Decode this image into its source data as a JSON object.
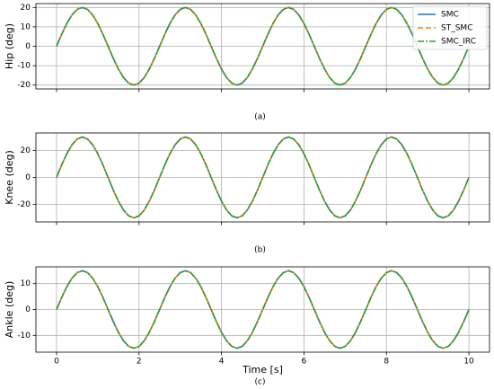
{
  "chart_data": [
    {
      "type": "line",
      "ylabel": "Hip (deg)",
      "caption": "(a)",
      "grid": true,
      "legend": "upper right",
      "x": [
        0,
        0.125,
        0.25,
        0.375,
        0.5,
        0.625,
        0.75,
        0.875,
        1,
        1.125,
        1.25,
        1.375,
        1.5,
        1.625,
        1.75,
        1.875,
        2,
        2.125,
        2.25,
        2.375,
        2.5,
        2.625,
        2.75,
        2.875,
        3,
        3.125,
        3.25,
        3.375,
        3.5,
        3.625,
        3.75,
        3.875,
        4,
        4.125,
        4.25,
        4.375,
        4.5,
        4.625,
        4.75,
        4.875,
        5,
        5.125,
        5.25,
        5.375,
        5.5,
        5.625,
        5.75,
        5.875,
        6,
        6.125,
        6.25,
        6.375,
        6.5,
        6.625,
        6.75,
        6.875,
        7,
        7.125,
        7.25,
        7.375,
        7.5,
        7.625,
        7.75,
        7.875,
        8,
        8.125,
        8.25,
        8.375,
        8.5,
        8.625,
        8.75,
        8.875,
        9,
        9.125,
        9.25,
        9.375,
        9.5,
        9.625,
        9.75,
        9.875,
        10
      ],
      "xlim": [
        -0.5,
        10.5
      ],
      "xticks": [
        0,
        2,
        4,
        6,
        8,
        10
      ],
      "ylim": [
        -22,
        22
      ],
      "yticks": [
        -20,
        -10,
        0,
        10,
        20
      ],
      "series": [
        {
          "name": "SMC",
          "color": "#1f77b4",
          "linestyle": "solid",
          "values": [
            0,
            6.18,
            11.76,
            16.18,
            19.02,
            20,
            19.02,
            16.18,
            11.76,
            6.18,
            0,
            -6.18,
            -11.76,
            -16.18,
            -19.02,
            -20,
            -19.02,
            -16.18,
            -11.76,
            -6.18,
            0,
            6.18,
            11.76,
            16.18,
            19.02,
            20,
            19.02,
            16.18,
            11.76,
            6.18,
            0,
            -6.18,
            -11.76,
            -16.18,
            -19.02,
            -20,
            -19.02,
            -16.18,
            -11.76,
            -6.18,
            0,
            6.18,
            11.76,
            16.18,
            19.02,
            20,
            19.02,
            16.18,
            11.76,
            6.18,
            0,
            -6.18,
            -11.76,
            -16.18,
            -19.02,
            -20,
            -19.02,
            -16.18,
            -11.76,
            -6.18,
            0,
            6.18,
            11.76,
            16.18,
            19.02,
            20,
            19.02,
            16.18,
            11.76,
            6.18,
            0,
            -6.18,
            -11.76,
            -16.18,
            -19.02,
            -20,
            -19.02,
            -16.18,
            -11.76,
            -6.18,
            0
          ]
        },
        {
          "name": "ST_SMC",
          "color": "#ff7f0e",
          "linestyle": "dashed",
          "values": [
            0,
            6.18,
            11.76,
            16.18,
            19.02,
            20,
            19.02,
            16.18,
            11.76,
            6.18,
            0,
            -6.18,
            -11.76,
            -16.18,
            -19.02,
            -20,
            -19.02,
            -16.18,
            -11.76,
            -6.18,
            0,
            6.18,
            11.76,
            16.18,
            19.02,
            20,
            19.02,
            16.18,
            11.76,
            6.18,
            0,
            -6.18,
            -11.76,
            -16.18,
            -19.02,
            -20,
            -19.02,
            -16.18,
            -11.76,
            -6.18,
            0,
            6.18,
            11.76,
            16.18,
            19.02,
            20,
            19.02,
            16.18,
            11.76,
            6.18,
            0,
            -6.18,
            -11.76,
            -16.18,
            -19.02,
            -20,
            -19.02,
            -16.18,
            -11.76,
            -6.18,
            0,
            6.18,
            11.76,
            16.18,
            19.02,
            20,
            19.02,
            16.18,
            11.76,
            6.18,
            0,
            -6.18,
            -11.76,
            -16.18,
            -19.02,
            -20,
            -19.02,
            -16.18,
            -11.76,
            -6.18,
            0
          ]
        },
        {
          "name": "SMC_IRC",
          "color": "#2ca02c",
          "linestyle": "dashdot",
          "values": [
            0,
            6.18,
            11.76,
            16.18,
            19.02,
            20,
            19.02,
            16.18,
            11.76,
            6.18,
            0,
            -6.18,
            -11.76,
            -16.18,
            -19.02,
            -20,
            -19.02,
            -16.18,
            -11.76,
            -6.18,
            0,
            6.18,
            11.76,
            16.18,
            19.02,
            20,
            19.02,
            16.18,
            11.76,
            6.18,
            0,
            -6.18,
            -11.76,
            -16.18,
            -19.02,
            -20,
            -19.02,
            -16.18,
            -11.76,
            -6.18,
            0,
            6.18,
            11.76,
            16.18,
            19.02,
            20,
            19.02,
            16.18,
            11.76,
            6.18,
            0,
            -6.18,
            -11.76,
            -16.18,
            -19.02,
            -20,
            -19.02,
            -16.18,
            -11.76,
            -6.18,
            0,
            6.18,
            11.76,
            16.18,
            19.02,
            20,
            19.02,
            16.18,
            11.76,
            6.18,
            0,
            -6.18,
            -11.76,
            -16.18,
            -19.02,
            -20,
            -19.02,
            -16.18,
            -11.76,
            -6.18,
            0
          ]
        }
      ]
    },
    {
      "type": "line",
      "ylabel": "Knee (deg)",
      "caption": "(b)",
      "grid": true,
      "x": [
        0,
        0.125,
        0.25,
        0.375,
        0.5,
        0.625,
        0.75,
        0.875,
        1,
        1.125,
        1.25,
        1.375,
        1.5,
        1.625,
        1.75,
        1.875,
        2,
        2.125,
        2.25,
        2.375,
        2.5,
        2.625,
        2.75,
        2.875,
        3,
        3.125,
        3.25,
        3.375,
        3.5,
        3.625,
        3.75,
        3.875,
        4,
        4.125,
        4.25,
        4.375,
        4.5,
        4.625,
        4.75,
        4.875,
        5,
        5.125,
        5.25,
        5.375,
        5.5,
        5.625,
        5.75,
        5.875,
        6,
        6.125,
        6.25,
        6.375,
        6.5,
        6.625,
        6.75,
        6.875,
        7,
        7.125,
        7.25,
        7.375,
        7.5,
        7.625,
        7.75,
        7.875,
        8,
        8.125,
        8.25,
        8.375,
        8.5,
        8.625,
        8.75,
        8.875,
        9,
        9.125,
        9.25,
        9.375,
        9.5,
        9.625,
        9.75,
        9.875,
        10
      ],
      "xlim": [
        -0.5,
        10.5
      ],
      "xticks": [
        0,
        2,
        4,
        6,
        8,
        10
      ],
      "ylim": [
        -33,
        33
      ],
      "yticks": [
        -20,
        0,
        20
      ],
      "series": [
        {
          "color": "#1f77b4",
          "linestyle": "solid",
          "values": [
            0,
            9.27,
            17.63,
            24.27,
            28.53,
            30,
            28.53,
            24.27,
            17.63,
            9.27,
            0,
            -9.27,
            -17.63,
            -24.27,
            -28.53,
            -30,
            -28.53,
            -24.27,
            -17.63,
            -9.27,
            0,
            9.27,
            17.63,
            24.27,
            28.53,
            30,
            28.53,
            24.27,
            17.63,
            9.27,
            0,
            -9.27,
            -17.63,
            -24.27,
            -28.53,
            -30,
            -28.53,
            -24.27,
            -17.63,
            -9.27,
            0,
            9.27,
            17.63,
            24.27,
            28.53,
            30,
            28.53,
            24.27,
            17.63,
            9.27,
            0,
            -9.27,
            -17.63,
            -24.27,
            -28.53,
            -30,
            -28.53,
            -24.27,
            -17.63,
            -9.27,
            0,
            9.27,
            17.63,
            24.27,
            28.53,
            30,
            28.53,
            24.27,
            17.63,
            9.27,
            0,
            -9.27,
            -17.63,
            -24.27,
            -28.53,
            -30,
            -28.53,
            -24.27,
            -17.63,
            -9.27,
            0
          ]
        },
        {
          "color": "#ff7f0e",
          "linestyle": "dashed",
          "values": [
            0,
            9.27,
            17.63,
            24.27,
            28.53,
            30,
            28.53,
            24.27,
            17.63,
            9.27,
            0,
            -9.27,
            -17.63,
            -24.27,
            -28.53,
            -30,
            -28.53,
            -24.27,
            -17.63,
            -9.27,
            0,
            9.27,
            17.63,
            24.27,
            28.53,
            30,
            28.53,
            24.27,
            17.63,
            9.27,
            0,
            -9.27,
            -17.63,
            -24.27,
            -28.53,
            -30,
            -28.53,
            -24.27,
            -17.63,
            -9.27,
            0,
            9.27,
            17.63,
            24.27,
            28.53,
            30,
            28.53,
            24.27,
            17.63,
            9.27,
            0,
            -9.27,
            -17.63,
            -24.27,
            -28.53,
            -30,
            -28.53,
            -24.27,
            -17.63,
            -9.27,
            0,
            9.27,
            17.63,
            24.27,
            28.53,
            30,
            28.53,
            24.27,
            17.63,
            9.27,
            0,
            -9.27,
            -17.63,
            -24.27,
            -28.53,
            -30,
            -28.53,
            -24.27,
            -17.63,
            -9.27,
            0
          ]
        },
        {
          "color": "#2ca02c",
          "linestyle": "dashdot",
          "values": [
            0,
            9.27,
            17.63,
            24.27,
            28.53,
            30,
            28.53,
            24.27,
            17.63,
            9.27,
            0,
            -9.27,
            -17.63,
            -24.27,
            -28.53,
            -30,
            -28.53,
            -24.27,
            -17.63,
            -9.27,
            0,
            9.27,
            17.63,
            24.27,
            28.53,
            30,
            28.53,
            24.27,
            17.63,
            9.27,
            0,
            -9.27,
            -17.63,
            -24.27,
            -28.53,
            -30,
            -28.53,
            -24.27,
            -17.63,
            -9.27,
            0,
            9.27,
            17.63,
            24.27,
            28.53,
            30,
            28.53,
            24.27,
            17.63,
            9.27,
            0,
            -9.27,
            -17.63,
            -24.27,
            -28.53,
            -30,
            -28.53,
            -24.27,
            -17.63,
            -9.27,
            0,
            9.27,
            17.63,
            24.27,
            28.53,
            30,
            28.53,
            24.27,
            17.63,
            9.27,
            0,
            -9.27,
            -17.63,
            -24.27,
            -28.53,
            -30,
            -28.53,
            -24.27,
            -17.63,
            -9.27,
            0
          ]
        }
      ]
    },
    {
      "type": "line",
      "ylabel": "Ankle (deg)",
      "caption": "(c)",
      "xlabel": "Time [s]",
      "grid": true,
      "x": [
        0,
        0.125,
        0.25,
        0.375,
        0.5,
        0.625,
        0.75,
        0.875,
        1,
        1.125,
        1.25,
        1.375,
        1.5,
        1.625,
        1.75,
        1.875,
        2,
        2.125,
        2.25,
        2.375,
        2.5,
        2.625,
        2.75,
        2.875,
        3,
        3.125,
        3.25,
        3.375,
        3.5,
        3.625,
        3.75,
        3.875,
        4,
        4.125,
        4.25,
        4.375,
        4.5,
        4.625,
        4.75,
        4.875,
        5,
        5.125,
        5.25,
        5.375,
        5.5,
        5.625,
        5.75,
        5.875,
        6,
        6.125,
        6.25,
        6.375,
        6.5,
        6.625,
        6.75,
        6.875,
        7,
        7.125,
        7.25,
        7.375,
        7.5,
        7.625,
        7.75,
        7.875,
        8,
        8.125,
        8.25,
        8.375,
        8.5,
        8.625,
        8.75,
        8.875,
        9,
        9.125,
        9.25,
        9.375,
        9.5,
        9.625,
        9.75,
        9.875,
        10
      ],
      "xlim": [
        -0.5,
        10.5
      ],
      "xticks": [
        0,
        2,
        4,
        6,
        8,
        10
      ],
      "ylim": [
        -16.5,
        16.5
      ],
      "yticks": [
        -10,
        0,
        10
      ],
      "series": [
        {
          "color": "#1f77b4",
          "linestyle": "solid",
          "values": [
            0,
            4.64,
            8.82,
            12.14,
            14.27,
            15,
            14.27,
            12.14,
            8.82,
            4.64,
            0,
            -4.64,
            -8.82,
            -12.14,
            -14.27,
            -15,
            -14.27,
            -12.14,
            -8.82,
            -4.64,
            0,
            4.64,
            8.82,
            12.14,
            14.27,
            15,
            14.27,
            12.14,
            8.82,
            4.64,
            0,
            -4.64,
            -8.82,
            -12.14,
            -14.27,
            -15,
            -14.27,
            -12.14,
            -8.82,
            -4.64,
            0,
            4.64,
            8.82,
            12.14,
            14.27,
            15,
            14.27,
            12.14,
            8.82,
            4.64,
            0,
            -4.64,
            -8.82,
            -12.14,
            -14.27,
            -15,
            -14.27,
            -12.14,
            -8.82,
            -4.64,
            0,
            4.64,
            8.82,
            12.14,
            14.27,
            15,
            14.27,
            12.14,
            8.82,
            4.64,
            0,
            -4.64,
            -8.82,
            -12.14,
            -14.27,
            -15,
            -14.27,
            -12.14,
            -8.82,
            -4.64,
            0
          ]
        },
        {
          "color": "#ff7f0e",
          "linestyle": "dashed",
          "values": [
            0,
            4.64,
            8.82,
            12.14,
            14.27,
            15,
            14.27,
            12.14,
            8.82,
            4.64,
            0,
            -4.64,
            -8.82,
            -12.14,
            -14.27,
            -15,
            -14.27,
            -12.14,
            -8.82,
            -4.64,
            0,
            4.64,
            8.82,
            12.14,
            14.27,
            15,
            14.27,
            12.14,
            8.82,
            4.64,
            0,
            -4.64,
            -8.82,
            -12.14,
            -14.27,
            -15,
            -14.27,
            -12.14,
            -8.82,
            -4.64,
            0,
            4.64,
            8.82,
            12.14,
            14.27,
            15,
            14.27,
            12.14,
            8.82,
            4.64,
            0,
            -4.64,
            -8.82,
            -12.14,
            -14.27,
            -15,
            -14.27,
            -12.14,
            -8.82,
            -4.64,
            0,
            4.64,
            8.82,
            12.14,
            14.27,
            15,
            14.27,
            12.14,
            8.82,
            4.64,
            0,
            -4.64,
            -8.82,
            -12.14,
            -14.27,
            -15,
            -14.27,
            -12.14,
            -8.82,
            -4.64,
            0
          ]
        },
        {
          "color": "#2ca02c",
          "linestyle": "dashdot",
          "values": [
            0,
            4.64,
            8.82,
            12.14,
            14.27,
            15,
            14.27,
            12.14,
            8.82,
            4.64,
            0,
            -4.64,
            -8.82,
            -12.14,
            -14.27,
            -15,
            -14.27,
            -12.14,
            -8.82,
            -4.64,
            0,
            4.64,
            8.82,
            12.14,
            14.27,
            15,
            14.27,
            12.14,
            8.82,
            4.64,
            0,
            -4.64,
            -8.82,
            -12.14,
            -14.27,
            -15,
            -14.27,
            -12.14,
            -8.82,
            -4.64,
            0,
            4.64,
            8.82,
            12.14,
            14.27,
            15,
            14.27,
            12.14,
            8.82,
            4.64,
            0,
            -4.64,
            -8.82,
            -12.14,
            -14.27,
            -15,
            -14.27,
            -12.14,
            -8.82,
            -4.64,
            0,
            4.64,
            8.82,
            12.14,
            14.27,
            15,
            14.27,
            12.14,
            8.82,
            4.64,
            0,
            -4.64,
            -8.82,
            -12.14,
            -14.27,
            -15,
            -14.27,
            -12.14,
            -8.82,
            -4.64,
            0
          ]
        }
      ]
    }
  ]
}
